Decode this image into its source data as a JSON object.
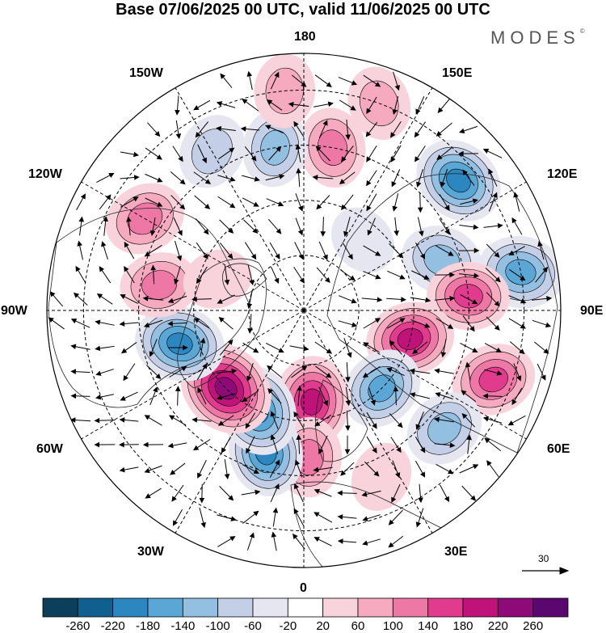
{
  "title": "Base 07/06/2025 00 UTC, valid 11/06/2025 00 UTC",
  "brand": "MODES",
  "brand_mark": "©",
  "longitude_labels": {
    "top": "180",
    "bottom": "0",
    "left": "90W",
    "right": "90E",
    "upper_left": "150W",
    "upper_right": "150E",
    "mid_upper_left": "120W",
    "mid_upper_right": "120E",
    "mid_lower_left": "60W",
    "mid_lower_right": "60E",
    "lower_left": "30W",
    "lower_right": "30E"
  },
  "vector_reference": "30",
  "colorbar": {
    "tick_labels": [
      "-260",
      "-220",
      "-180",
      "-140",
      "-100",
      "-60",
      "-20",
      "20",
      "60",
      "100",
      "140",
      "180",
      "220",
      "260"
    ],
    "colors": [
      "#0b3f5c",
      "#10608f",
      "#2c86c0",
      "#5aa7d6",
      "#93bfe0",
      "#c3cfe6",
      "#e6e6f1",
      "#ffffff",
      "#f9d3dc",
      "#f5aac0",
      "#ee78a5",
      "#e03b8c",
      "#c0137a",
      "#8e0a78",
      "#5a0870"
    ]
  },
  "anomaly_centers": [
    {
      "lon": 130,
      "lat": 35,
      "value": -200
    },
    {
      "lon": 100,
      "lat": 30,
      "value": -180
    },
    {
      "lon": 110,
      "lat": 50,
      "value": -140
    },
    {
      "lon": 170,
      "lat": 45,
      "value": 130
    },
    {
      "lon": 95,
      "lat": 45,
      "value": 150
    },
    {
      "lon": 75,
      "lat": 60,
      "value": 190
    },
    {
      "lon": 70,
      "lat": 35,
      "value": 160
    },
    {
      "lon": 45,
      "lat": 60,
      "value": -160
    },
    {
      "lon": 50,
      "lat": 40,
      "value": -130
    },
    {
      "lon": 5,
      "lat": 65,
      "value": 210
    },
    {
      "lon": 2,
      "lat": 50,
      "value": 130
    },
    {
      "lon": -15,
      "lat": 50,
      "value": -190
    },
    {
      "lon": -25,
      "lat": 60,
      "value": -210
    },
    {
      "lon": -45,
      "lat": 60,
      "value": 260
    },
    {
      "lon": -75,
      "lat": 55,
      "value": -200
    },
    {
      "lon": -100,
      "lat": 50,
      "value": 120
    },
    {
      "lon": -120,
      "lat": 40,
      "value": 140
    },
    {
      "lon": -150,
      "lat": 40,
      "value": -100
    },
    {
      "lon": -170,
      "lat": 45,
      "value": -120
    },
    {
      "lon": -175,
      "lat": 30,
      "value": 90
    },
    {
      "lon": 160,
      "lat": 30,
      "value": 90
    },
    {
      "lon": -110,
      "lat": 65,
      "value": 60
    },
    {
      "lon": 140,
      "lat": 65,
      "value": -60
    },
    {
      "lon": 25,
      "lat": 40,
      "value": 60
    }
  ]
}
